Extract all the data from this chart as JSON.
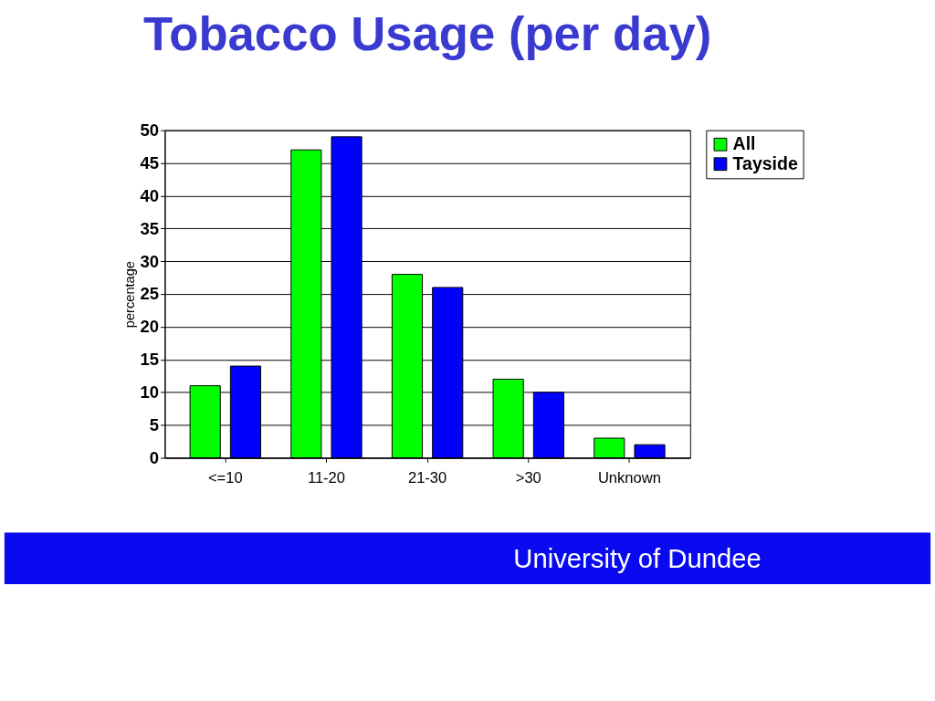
{
  "chart_data": {
    "type": "bar",
    "title": "Tobacco Usage (per day)",
    "ylabel": "percentage",
    "categories": [
      "<=10",
      "11-20",
      "21-30",
      ">30",
      "Unknown"
    ],
    "series": [
      {
        "name": "All",
        "color": "#00ff00",
        "values": [
          11,
          47,
          28,
          12,
          3
        ]
      },
      {
        "name": "Tayside",
        "color": "#0000ff",
        "values": [
          14,
          49,
          26,
          10,
          2
        ]
      }
    ],
    "ylim": [
      0,
      50
    ],
    "yticks": [
      0,
      5,
      10,
      15,
      20,
      25,
      30,
      35,
      40,
      45,
      50
    ],
    "grid": "y",
    "legend": "right",
    "annotations": [
      "University of Dundee"
    ]
  }
}
